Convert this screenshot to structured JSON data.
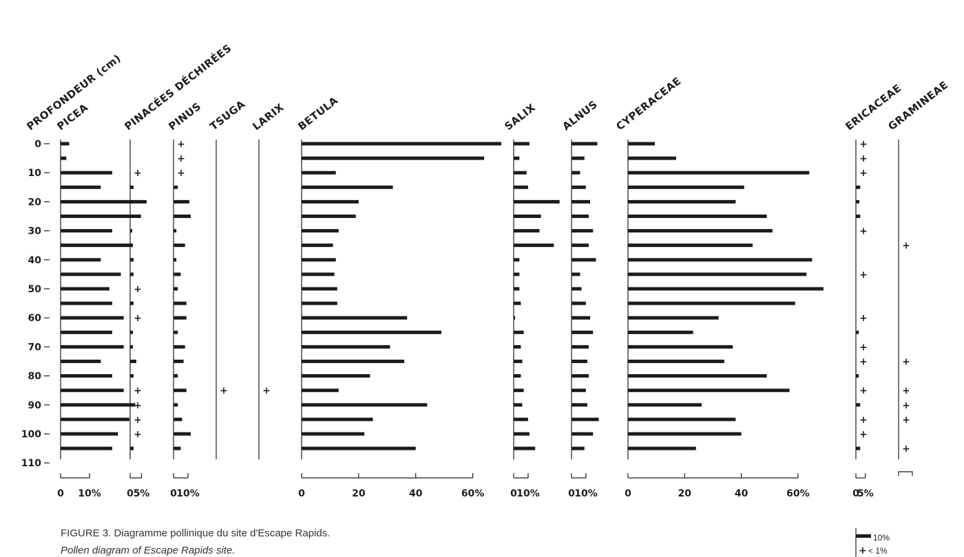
{
  "chart_data": {
    "type": "bar",
    "orientation": "horizontal",
    "depth_axis": {
      "title": "PROFONDEUR (cm)",
      "ticks": [
        "0",
        "10",
        "20",
        "30",
        "40",
        "50",
        "60",
        "70",
        "80",
        "90",
        "100",
        "110"
      ],
      "range": [
        0,
        110
      ]
    },
    "depths": [
      0,
      5,
      10,
      15,
      20,
      25,
      30,
      35,
      40,
      45,
      50,
      55,
      60,
      65,
      70,
      75,
      80,
      85,
      90,
      95,
      100,
      105
    ],
    "trace_marker": "+",
    "trace_threshold_pct": 1,
    "series": [
      {
        "name": "PICEA",
        "max": 12,
        "scale_labels": [
          "0",
          "10%"
        ],
        "values": [
          1.5,
          1,
          9,
          7,
          15,
          14,
          9,
          12.5,
          7,
          10.5,
          8.5,
          9,
          11,
          9,
          11,
          7,
          9,
          11,
          13,
          12,
          10,
          9
        ],
        "trace": []
      },
      {
        "name": "PINACÉES DÉCHIRÉES",
        "max": 6,
        "scale_labels": [
          "0",
          "5%"
        ],
        "values": [
          0,
          0,
          0,
          1,
          1.2,
          1.4,
          0.6,
          0.8,
          1,
          1,
          0,
          1,
          0,
          0.8,
          0.8,
          1.8,
          1,
          0,
          0,
          0,
          0,
          1
        ],
        "trace": [
          2,
          10,
          12,
          17,
          18,
          19,
          20
        ]
      },
      {
        "name": "PINUS",
        "max": 12,
        "scale_labels": [
          "0",
          "10%"
        ],
        "values": [
          0,
          0,
          0,
          1.5,
          5.5,
          6,
          1,
          4,
          1,
          2.5,
          1.5,
          4.5,
          4.5,
          1.5,
          4,
          3.5,
          1.5,
          4.5,
          1.5,
          3,
          6,
          2.5
        ],
        "trace": [
          0,
          1,
          2
        ]
      },
      {
        "name": "TSUGA",
        "max": 6,
        "scale_labels": [],
        "values": [
          0,
          0,
          0,
          0,
          0,
          0,
          0,
          0,
          0,
          0,
          0,
          0,
          0,
          0,
          0,
          0,
          0,
          0,
          0,
          0,
          0,
          0
        ],
        "trace": [
          17
        ]
      },
      {
        "name": "LARIX",
        "max": 6,
        "scale_labels": [],
        "values": [
          0,
          0,
          0,
          0,
          0,
          0,
          0,
          0,
          0,
          0,
          0,
          0,
          0,
          0,
          0,
          0,
          0,
          0,
          0,
          0,
          0,
          0
        ],
        "trace": [
          17
        ]
      },
      {
        "name": "BETULA",
        "max": 70,
        "scale_labels": [
          "0",
          "20",
          "40",
          "60%"
        ],
        "values": [
          70,
          64,
          12,
          32,
          20,
          19,
          13,
          11,
          12,
          11.5,
          12.5,
          12.5,
          37,
          49,
          31,
          36,
          24,
          13,
          44,
          25,
          22,
          40
        ],
        "trace": []
      },
      {
        "name": "SALIX",
        "max": 12,
        "scale_labels": [
          "0",
          "10%"
        ],
        "values": [
          5.5,
          2,
          4.5,
          5,
          16,
          9.5,
          9,
          14,
          2,
          2,
          2,
          2.5,
          0.5,
          3.5,
          2.5,
          3,
          2.5,
          3.5,
          3,
          5,
          5.5,
          7.5
        ],
        "trace": []
      },
      {
        "name": "ALNUS",
        "max": 12,
        "scale_labels": [
          "0",
          "10%"
        ],
        "values": [
          9,
          4.5,
          3,
          5,
          6.5,
          6,
          7.5,
          6,
          8.5,
          3,
          3.5,
          5,
          6.5,
          7.5,
          6,
          5.5,
          6,
          5,
          5.5,
          9.5,
          7.5,
          4.5
        ],
        "trace": []
      },
      {
        "name": "CYPERACEAE",
        "max": 70,
        "scale_labels": [
          "0",
          "20",
          "40",
          "60%"
        ],
        "values": [
          9.5,
          17,
          64,
          41,
          38,
          49,
          51,
          44,
          65,
          63,
          69,
          59,
          32,
          23,
          37,
          34,
          49,
          57,
          26,
          38,
          40,
          24
        ],
        "trace": []
      },
      {
        "name": "ERICACEAE",
        "max": 6,
        "scale_labels": [
          "0",
          "5%"
        ],
        "values": [
          0,
          0,
          0,
          1.5,
          1.2,
          1.5,
          0,
          0,
          0,
          0,
          0,
          0,
          0,
          1,
          0,
          0,
          1,
          0,
          1.5,
          0,
          0,
          1.5
        ],
        "trace": [
          0,
          1,
          2,
          6,
          9,
          12,
          14,
          15,
          17,
          19,
          20
        ]
      },
      {
        "name": "GRAMINEAE",
        "max": 6,
        "scale_labels": [],
        "values": [
          0,
          0,
          0,
          0,
          0,
          0,
          0,
          0,
          0,
          0,
          0,
          0,
          0,
          0,
          0,
          0,
          0,
          0,
          0,
          0,
          0,
          0
        ],
        "trace": [
          7,
          15,
          17,
          18,
          19,
          21
        ]
      }
    ],
    "legend": {
      "placement": "bottom-right",
      "bar_label": "10%",
      "trace_label": "< 1%"
    }
  },
  "caption": {
    "french": "FIGURE 3.  Diagramme pollinique du site d'Escape Rapids.",
    "english": "Pollen diagram of Escape Rapids site."
  },
  "colors": {
    "ink": "#1c1c1c",
    "background": "#ffffff"
  }
}
